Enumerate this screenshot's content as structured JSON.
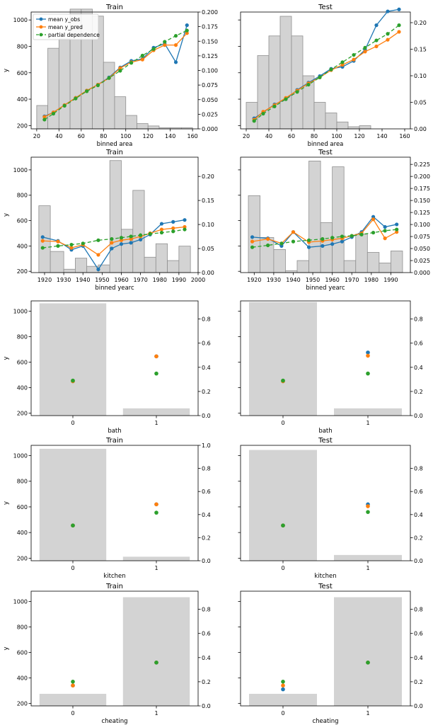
{
  "legend": {
    "entries": [
      {
        "label": "mean y_obs",
        "color": "#1f77b4",
        "style": "solid"
      },
      {
        "label": "mean y_pred",
        "color": "#ff7f0e",
        "style": "solid"
      },
      {
        "label": "partial dependence",
        "color": "#2ca02c",
        "style": "dashed"
      }
    ]
  },
  "colors": {
    "obs": "#1f77b4",
    "pred": "#ff7f0e",
    "pd": "#2ca02c",
    "hist": "#d3d3d3",
    "hist_edge": "#909090"
  },
  "chart_data": [
    {
      "type": "line",
      "title": "Train",
      "xlabel": "binned area",
      "ylabel": "y",
      "xlim": [
        15,
        165
      ],
      "ylim": [
        175,
        1060
      ],
      "y2lim": [
        0,
        0.2
      ],
      "legend_position": "top-left",
      "xticks": [
        20,
        40,
        60,
        80,
        100,
        120,
        140,
        160
      ],
      "yticks": [
        200,
        400,
        600,
        800,
        1000
      ],
      "y2ticks": [
        "0.000",
        "0.025",
        "0.050",
        "0.075",
        "0.100",
        "0.125",
        "0.150",
        "0.175",
        "0.200"
      ],
      "hist": {
        "edges": [
          20,
          30,
          40,
          50,
          60,
          70,
          80,
          90,
          100,
          110,
          120,
          130,
          140,
          150,
          160
        ],
        "values": [
          0.04,
          0.138,
          0.154,
          0.205,
          0.205,
          0.193,
          0.114,
          0.055,
          0.023,
          0.009,
          0.005,
          0.002,
          0.002,
          0.002
        ]
      },
      "series": [
        {
          "name": "mean y_obs",
          "x": [
            27,
            35,
            45,
            55,
            65,
            75,
            85,
            95,
            105,
            115,
            125,
            135,
            145,
            155
          ],
          "values": [
            270,
            300,
            355,
            410,
            465,
            510,
            565,
            640,
            690,
            705,
            790,
            820,
            680,
            960
          ]
        },
        {
          "name": "mean y_pred",
          "x": [
            27,
            35,
            45,
            55,
            65,
            75,
            85,
            95,
            105,
            115,
            125,
            135,
            145,
            155
          ],
          "values": [
            265,
            300,
            355,
            410,
            465,
            510,
            560,
            635,
            680,
            700,
            770,
            810,
            810,
            900
          ]
        },
        {
          "name": "partial dependence",
          "x": [
            27,
            35,
            45,
            55,
            65,
            75,
            85,
            95,
            105,
            115,
            125,
            135,
            145,
            155
          ],
          "values": [
            245,
            290,
            350,
            405,
            460,
            505,
            560,
            615,
            675,
            730,
            780,
            835,
            880,
            920
          ]
        }
      ]
    },
    {
      "type": "line",
      "title": "Test",
      "xlabel": "binned area",
      "ylabel": "",
      "xlim": [
        15,
        165
      ],
      "ylim": [
        175,
        1060
      ],
      "y2lim": [
        0,
        0.22
      ],
      "xticks": [
        20,
        40,
        60,
        80,
        100,
        120,
        140,
        160
      ],
      "yticks": [],
      "y2ticks": [
        "0.00",
        "0.05",
        "0.10",
        "0.15",
        "0.20"
      ],
      "hist": {
        "edges": [
          20,
          30,
          40,
          50,
          60,
          70,
          80,
          90,
          100,
          110,
          120,
          130,
          140,
          150,
          160
        ],
        "values": [
          0.05,
          0.138,
          0.175,
          0.212,
          0.175,
          0.1,
          0.05,
          0.03,
          0.013,
          0.004,
          0.006,
          0,
          0,
          0
        ]
      },
      "series": [
        {
          "name": "mean y_obs",
          "x": [
            27,
            35,
            45,
            55,
            65,
            75,
            85,
            95,
            105,
            115,
            125,
            135,
            145,
            155
          ],
          "values": [
            255,
            300,
            360,
            400,
            470,
            525,
            575,
            630,
            645,
            690,
            775,
            960,
            1065,
            1080
          ]
        },
        {
          "name": "mean y_pred",
          "x": [
            27,
            35,
            45,
            55,
            65,
            75,
            85,
            95,
            105,
            115,
            125,
            135,
            145,
            155
          ],
          "values": [
            245,
            305,
            355,
            410,
            465,
            520,
            565,
            620,
            660,
            700,
            760,
            800,
            850,
            910
          ]
        },
        {
          "name": "partial dependence",
          "x": [
            27,
            35,
            45,
            55,
            65,
            75,
            85,
            95,
            105,
            115,
            125,
            135,
            145,
            155
          ],
          "values": [
            235,
            290,
            345,
            400,
            455,
            510,
            565,
            625,
            680,
            735,
            790,
            845,
            895,
            960
          ]
        }
      ]
    },
    {
      "type": "line",
      "title": "Train",
      "xlabel": "binned yearc",
      "ylabel": "y",
      "xlim": [
        1913,
        2000
      ],
      "ylim": [
        190,
        1100
      ],
      "y2lim": [
        0,
        0.24
      ],
      "xticks": [
        1920,
        1930,
        1940,
        1950,
        1960,
        1970,
        1980,
        1990,
        2000
      ],
      "yticks": [
        200,
        400,
        600,
        800,
        1000
      ],
      "y2ticks": [
        "0.00",
        "0.05",
        "0.10",
        "0.15",
        "0.20"
      ],
      "hist": {
        "edges": [
          1917,
          1923,
          1930,
          1936,
          1942,
          1948,
          1954,
          1960,
          1966,
          1972,
          1978,
          1984,
          1990,
          1996
        ],
        "values": [
          0.139,
          0.044,
          0.007,
          0.03,
          0.013,
          0.016,
          0.233,
          0.09,
          0.171,
          0.032,
          0.06,
          0.025,
          0.055
        ]
      },
      "series": [
        {
          "name": "mean y_obs",
          "x": [
            1919,
            1927,
            1934,
            1940,
            1948,
            1955,
            1960,
            1965,
            1970,
            1975,
            1981,
            1987,
            1993
          ],
          "values": [
            470,
            440,
            370,
            400,
            215,
            380,
            415,
            425,
            450,
            490,
            575,
            590,
            605
          ]
        },
        {
          "name": "mean y_pred",
          "x": [
            1919,
            1927,
            1934,
            1940,
            1948,
            1955,
            1960,
            1965,
            1970,
            1975,
            1981,
            1987,
            1993
          ],
          "values": [
            440,
            435,
            385,
            410,
            330,
            425,
            445,
            455,
            475,
            500,
            530,
            540,
            550
          ]
        },
        {
          "name": "partial dependence",
          "x": [
            1919,
            1927,
            1934,
            1940,
            1948,
            1955,
            1960,
            1965,
            1970,
            1975,
            1981,
            1987,
            1993
          ],
          "values": [
            385,
            400,
            410,
            420,
            445,
            455,
            465,
            475,
            485,
            495,
            505,
            515,
            530
          ]
        }
      ]
    },
    {
      "type": "line",
      "title": "Test",
      "xlabel": "binned yearc",
      "ylabel": "",
      "xlim": [
        1913,
        2000
      ],
      "ylim": [
        190,
        1100
      ],
      "y2lim": [
        0,
        0.24
      ],
      "xticks": [
        1920,
        1930,
        1940,
        1950,
        1960,
        1970,
        1980,
        1990
      ],
      "yticks": [],
      "y2ticks": [
        "0.000",
        "0.025",
        "0.050",
        "0.075",
        "0.100",
        "0.125",
        "0.150",
        "0.175",
        "0.200",
        "0.225"
      ],
      "hist": {
        "edges": [
          1917,
          1923,
          1930,
          1936,
          1942,
          1948,
          1954,
          1960,
          1966,
          1972,
          1978,
          1984,
          1990,
          1996
        ],
        "values": [
          0.16,
          0.073,
          0.048,
          0.004,
          0.025,
          0.232,
          0.104,
          0.22,
          0.025,
          0.08,
          0.042,
          0.02,
          0.045
        ]
      },
      "series": [
        {
          "name": "mean y_obs",
          "x": [
            1919,
            1927,
            1934,
            1940,
            1948,
            1955,
            1960,
            1965,
            1970,
            1975,
            1981,
            1987,
            1993
          ],
          "values": [
            470,
            460,
            400,
            510,
            390,
            400,
            415,
            435,
            470,
            510,
            630,
            550,
            570
          ]
        },
        {
          "name": "mean y_pred",
          "x": [
            1919,
            1927,
            1934,
            1940,
            1948,
            1955,
            1960,
            1965,
            1970,
            1975,
            1981,
            1987,
            1993
          ],
          "values": [
            435,
            455,
            420,
            510,
            430,
            440,
            450,
            460,
            480,
            500,
            610,
            460,
            510
          ]
        },
        {
          "name": "partial dependence",
          "x": [
            1919,
            1927,
            1934,
            1940,
            1948,
            1955,
            1960,
            1965,
            1970,
            1975,
            1981,
            1987,
            1993
          ],
          "values": [
            390,
            405,
            420,
            435,
            445,
            455,
            465,
            475,
            480,
            490,
            505,
            520,
            530
          ]
        }
      ]
    },
    {
      "type": "scatter",
      "title": "",
      "xlabel": "bath",
      "ylabel": "y",
      "categories": [
        "0",
        "1"
      ],
      "ylim": [
        180,
        1080
      ],
      "y2lim": [
        0,
        0.95
      ],
      "yticks": [
        200,
        400,
        600,
        800,
        1000
      ],
      "y2ticks": [
        "0.0",
        "0.2",
        "0.4",
        "0.6",
        "0.8"
      ],
      "hist": [
        0.93,
        0.06
      ],
      "series": [
        {
          "name": "mean y_obs",
          "values": [
            450,
            645
          ]
        },
        {
          "name": "mean y_pred",
          "values": [
            450,
            645
          ]
        },
        {
          "name": "partial dependence",
          "values": [
            455,
            510
          ]
        }
      ]
    },
    {
      "type": "scatter",
      "title": "",
      "xlabel": "bath",
      "ylabel": "",
      "categories": [
        "0",
        "1"
      ],
      "ylim": [
        180,
        1080
      ],
      "y2lim": [
        0,
        0.95
      ],
      "yticks": [],
      "y2ticks": [
        "0.0",
        "0.2",
        "0.4",
        "0.6",
        "0.8"
      ],
      "hist": [
        0.94,
        0.06
      ],
      "series": [
        {
          "name": "mean y_obs",
          "values": [
            450,
            675
          ]
        },
        {
          "name": "mean y_pred",
          "values": [
            450,
            650
          ]
        },
        {
          "name": "partial dependence",
          "values": [
            455,
            510
          ]
        }
      ]
    },
    {
      "type": "scatter",
      "title": "Train",
      "xlabel": "kitchen",
      "ylabel": "y",
      "categories": [
        "0",
        "1"
      ],
      "ylim": [
        180,
        1080
      ],
      "y2lim": [
        0,
        1.0
      ],
      "yticks": [
        200,
        400,
        600,
        800,
        1000
      ],
      "y2ticks": [
        "0.0",
        "0.2",
        "0.4",
        "0.6",
        "0.8",
        "1.0"
      ],
      "hist": [
        0.97,
        0.035
      ],
      "series": [
        {
          "name": "mean y_obs",
          "values": [
            455,
            620
          ]
        },
        {
          "name": "mean y_pred",
          "values": [
            455,
            620
          ]
        },
        {
          "name": "partial dependence",
          "values": [
            455,
            555
          ]
        }
      ]
    },
    {
      "type": "scatter",
      "title": "Test",
      "xlabel": "kitchen",
      "ylabel": "",
      "categories": [
        "0",
        "1"
      ],
      "ylim": [
        180,
        1080
      ],
      "y2lim": [
        0,
        1.0
      ],
      "yticks": [],
      "y2ticks": [
        "0.0",
        "0.2",
        "0.4",
        "0.6",
        "0.8"
      ],
      "hist": [
        0.96,
        0.05
      ],
      "series": [
        {
          "name": "mean y_obs",
          "values": [
            455,
            620
          ]
        },
        {
          "name": "mean y_pred",
          "values": [
            455,
            605
          ]
        },
        {
          "name": "partial dependence",
          "values": [
            455,
            560
          ]
        }
      ]
    },
    {
      "type": "scatter",
      "title": "Train",
      "xlabel": "cheating",
      "ylabel": "y",
      "categories": [
        "0",
        "1"
      ],
      "ylim": [
        180,
        1080
      ],
      "y2lim": [
        0,
        0.95
      ],
      "yticks": [
        200,
        400,
        600,
        800,
        1000
      ],
      "y2ticks": [
        "0.0",
        "0.2",
        "0.4",
        "0.6",
        "0.8"
      ],
      "hist": [
        0.1,
        0.9
      ],
      "series": [
        {
          "name": "mean y_obs",
          "values": [
            340,
            520
          ]
        },
        {
          "name": "mean y_pred",
          "values": [
            340,
            520
          ]
        },
        {
          "name": "partial dependence",
          "values": [
            370,
            520
          ]
        }
      ]
    },
    {
      "type": "scatter",
      "title": "Test",
      "xlabel": "cheating",
      "ylabel": "",
      "categories": [
        "0",
        "1"
      ],
      "ylim": [
        180,
        1080
      ],
      "y2lim": [
        0,
        0.95
      ],
      "yticks": [],
      "y2ticks": [
        "0.0",
        "0.2",
        "0.4",
        "0.6",
        "0.8"
      ],
      "hist": [
        0.1,
        0.9
      ],
      "series": [
        {
          "name": "mean y_obs",
          "values": [
            310,
            520
          ]
        },
        {
          "name": "mean y_pred",
          "values": [
            340,
            520
          ]
        },
        {
          "name": "partial dependence",
          "values": [
            370,
            520
          ]
        }
      ]
    }
  ]
}
